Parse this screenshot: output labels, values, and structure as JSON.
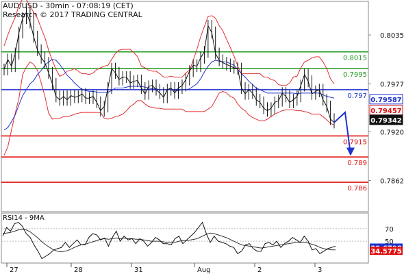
{
  "header": {
    "title": "AUD/USD - 30min - 07:08:19 (CET)",
    "subtitle": "Research © 2017 TRADING CENTRAL"
  },
  "rsi_label": "RSI14 - 9MA",
  "colors": {
    "price": "#111111",
    "bands": "#e03030",
    "ma": "#2233cc",
    "resistance": "#229922",
    "pivot": "#1f33cc",
    "support": "#e01010",
    "projection": "#1f33cc",
    "rsi": "#111111",
    "rsi_ma": "#333333",
    "tag_rsi": "#1f33cc",
    "tag_rsi_ma": "#e01010",
    "tag_dark": "#111111"
  },
  "chart_data": [
    {
      "type": "line",
      "title": "AUD/USD - 30min - 07:08:19 (CET)",
      "ylim": [
        0.7825,
        0.8075
      ],
      "x_tick_labels": [
        "27",
        "28",
        "31",
        "Aug",
        "2",
        "3"
      ],
      "y_tick_labels": [
        {
          "value": 0.8035,
          "label": "0.8035"
        },
        {
          "value": 0.7977,
          "label": "0.7977"
        },
        {
          "value": 0.792,
          "label": "0.7920"
        },
        {
          "value": 0.7862,
          "label": "0.7862"
        }
      ],
      "levels": [
        {
          "value": 0.8015,
          "label": "0.8015",
          "kind": "resistance"
        },
        {
          "value": 0.7995,
          "label": "0.7995",
          "kind": "resistance"
        },
        {
          "value": 0.797,
          "label": "0.797",
          "kind": "pivot"
        },
        {
          "value": 0.7915,
          "label": "0.7915",
          "kind": "support"
        },
        {
          "value": 0.789,
          "label": "0.789",
          "kind": "support"
        },
        {
          "value": 0.786,
          "label": "0.786",
          "kind": "support"
        }
      ],
      "value_tags": [
        {
          "value": 0.79587,
          "label": "0.79587",
          "kind": "outline_blue"
        },
        {
          "value": 0.79457,
          "label": "0.79457",
          "kind": "outline_red"
        },
        {
          "value": 0.79342,
          "label": "0.79342",
          "kind": "filled_dark"
        }
      ],
      "series": [
        {
          "role": "price",
          "values": [
            0.7994,
            0.8006,
            0.7998,
            0.8013,
            0.8038,
            0.8055,
            0.8062,
            0.805,
            0.8033,
            0.8017,
            0.8008,
            0.8002,
            0.799,
            0.7977,
            0.7962,
            0.7958,
            0.7962,
            0.7958,
            0.7963,
            0.7961,
            0.7962,
            0.7965,
            0.796,
            0.796,
            0.7962,
            0.7955,
            0.7945,
            0.795,
            0.7972,
            0.7995,
            0.799,
            0.7982,
            0.7985,
            0.7985,
            0.7978,
            0.798,
            0.7981,
            0.7972,
            0.7965,
            0.7974,
            0.7975,
            0.797,
            0.7966,
            0.7961,
            0.797,
            0.7972,
            0.7966,
            0.7972,
            0.7975,
            0.7982,
            0.7992,
            0.7999,
            0.7998,
            0.8008,
            0.8015,
            0.8046,
            0.8038,
            0.8013,
            0.8005,
            0.8002,
            0.8,
            0.7998,
            0.7996,
            0.7995,
            0.7972,
            0.7965,
            0.797,
            0.7966,
            0.7958,
            0.7955,
            0.7948,
            0.7945,
            0.7948,
            0.7955,
            0.7957,
            0.7966,
            0.7962,
            0.7955,
            0.7958,
            0.7962,
            0.7975,
            0.7988,
            0.798,
            0.7965,
            0.7968,
            0.797,
            0.7958,
            0.795,
            0.7935,
            0.7931
          ]
        },
        {
          "role": "bollinger_upper",
          "values": [
            0.8022,
            0.8035,
            0.8046,
            0.8056,
            0.807,
            0.8078,
            0.8077,
            0.8069,
            0.8062,
            0.8055,
            0.8043,
            0.8032,
            0.8017,
            0.8005,
            0.7994,
            0.7986,
            0.7988,
            0.7992,
            0.7993,
            0.7995,
            0.7992,
            0.7989,
            0.7989,
            0.7988,
            0.799,
            0.7994,
            0.7996,
            0.7998,
            0.7999,
            0.8006,
            0.8013,
            0.8017,
            0.8018,
            0.8018,
            0.8018,
            0.8014,
            0.8009,
            0.7998,
            0.7996,
            0.7993,
            0.7992,
            0.7992,
            0.7989,
            0.7985,
            0.7985,
            0.7986,
            0.7985,
            0.7985,
            0.7985,
            0.799,
            0.7993,
            0.8005,
            0.8018,
            0.8033,
            0.8045,
            0.8057,
            0.8058,
            0.8055,
            0.8046,
            0.804,
            0.803,
            0.802,
            0.801,
            0.7998,
            0.7989,
            0.7989,
            0.7989,
            0.7989,
            0.7989,
            0.7989,
            0.7985,
            0.7985,
            0.7982,
            0.7981,
            0.7976,
            0.7975,
            0.7975,
            0.7978,
            0.7985,
            0.7986,
            0.7996,
            0.8003,
            0.8005,
            0.8008,
            0.8009,
            0.8009,
            0.8003,
            0.7995,
            0.7983,
            0.7977
          ]
        },
        {
          "role": "bollinger_lower",
          "values": [
            0.7892,
            0.7902,
            0.7922,
            0.7942,
            0.796,
            0.7988,
            0.7997,
            0.8003,
            0.8,
            0.7993,
            0.7978,
            0.7962,
            0.7942,
            0.7935,
            0.7936,
            0.7936,
            0.7938,
            0.7938,
            0.7939,
            0.7941,
            0.7942,
            0.7943,
            0.7943,
            0.7943,
            0.7943,
            0.7943,
            0.7943,
            0.7936,
            0.7935,
            0.7936,
            0.7938,
            0.7939,
            0.7941,
            0.7945,
            0.795,
            0.7953,
            0.7957,
            0.7957,
            0.7953,
            0.795,
            0.7949,
            0.7948,
            0.7948,
            0.7947,
            0.7947,
            0.7947,
            0.7947,
            0.7947,
            0.7947,
            0.7944,
            0.7944,
            0.7944,
            0.7944,
            0.7944,
            0.7944,
            0.7947,
            0.795,
            0.7958,
            0.7966,
            0.7968,
            0.7966,
            0.7962,
            0.796,
            0.7953,
            0.7948,
            0.7945,
            0.794,
            0.7937,
            0.7935,
            0.7933,
            0.7933,
            0.7935,
            0.7938,
            0.7941,
            0.7943,
            0.7945,
            0.7946,
            0.7946,
            0.7946,
            0.7945,
            0.7945,
            0.7944,
            0.7943,
            0.7941,
            0.7941,
            0.7941,
            0.7938,
            0.7934,
            0.793,
            0.7928
          ]
        },
        {
          "role": "moving_average",
          "values": [
            0.7922,
            0.7925,
            0.7932,
            0.794,
            0.7952,
            0.7963,
            0.797,
            0.7977,
            0.7981,
            0.7988,
            0.7993,
            0.7999,
            0.8003,
            0.8006,
            0.8005,
            0.8,
            0.7994,
            0.7987,
            0.7983,
            0.7978,
            0.7974,
            0.797,
            0.7969,
            0.7968,
            0.7968,
            0.7967,
            0.7967,
            0.7967,
            0.7967,
            0.7969,
            0.7972,
            0.7972,
            0.7972,
            0.7973,
            0.7974,
            0.7974,
            0.7974,
            0.7974,
            0.7973,
            0.7972,
            0.7971,
            0.7971,
            0.797,
            0.797,
            0.797,
            0.797,
            0.7969,
            0.7969,
            0.797,
            0.797,
            0.7971,
            0.7974,
            0.7977,
            0.7983,
            0.7991,
            0.7998,
            0.8003,
            0.8005,
            0.8004,
            0.8003,
            0.8003,
            0.8001,
            0.7999,
            0.7994,
            0.7989,
            0.7985,
            0.798,
            0.7976,
            0.7972,
            0.797,
            0.7968,
            0.7966,
            0.7966,
            0.7966,
            0.7966,
            0.7966,
            0.7966,
            0.7966,
            0.7966,
            0.7965,
            0.7966,
            0.7966,
            0.7966,
            0.7966,
            0.7966,
            0.7966,
            0.7964,
            0.7962,
            0.7961,
            0.796
          ]
        },
        {
          "role": "projection",
          "values": [
            0.7931,
            0.7943,
            0.7893
          ]
        }
      ]
    },
    {
      "type": "line",
      "title": "RSI14 - 9MA",
      "ylim": [
        15,
        95
      ],
      "y_tick_labels": [
        {
          "value": 70,
          "label": "70"
        },
        {
          "value": 50,
          "label": "50"
        }
      ],
      "value_tags": [
        {
          "value": 39.6798,
          "label": "39.6798",
          "kind": "rsi"
        },
        {
          "value": 34.5775,
          "label": "34.5775",
          "kind": "rsi_ma"
        }
      ],
      "series": [
        {
          "role": "rsi",
          "values": [
            58,
            72,
            66,
            78,
            80,
            74,
            62,
            56,
            44,
            34,
            22,
            26,
            30,
            36,
            38,
            40,
            48,
            40,
            46,
            52,
            44,
            44,
            56,
            62,
            60,
            52,
            55,
            42,
            56,
            66,
            50,
            58,
            52,
            54,
            46,
            54,
            50,
            42,
            48,
            56,
            52,
            46,
            46,
            44,
            54,
            58,
            46,
            52,
            58,
            64,
            72,
            80,
            62,
            48,
            58,
            50,
            48,
            46,
            42,
            40,
            30,
            34,
            44,
            46,
            38,
            34,
            34,
            46,
            48,
            44,
            50,
            40,
            46,
            50,
            56,
            52,
            48,
            58,
            50,
            36,
            38,
            30,
            34,
            38,
            40,
            42
          ]
        },
        {
          "role": "rsi_ma",
          "values": [
            62,
            63,
            64,
            66,
            68,
            69,
            68,
            65,
            60,
            55,
            49,
            44,
            40,
            36,
            34,
            33,
            34,
            36,
            39,
            42,
            44,
            45,
            47,
            49,
            51,
            53,
            54,
            53,
            54,
            55,
            54,
            55,
            54,
            54,
            53,
            53,
            52,
            51,
            50,
            50,
            50,
            49,
            48,
            48,
            48,
            50,
            51,
            51,
            52,
            53,
            55,
            58,
            61,
            63,
            62,
            60,
            58,
            56,
            53,
            50,
            47,
            44,
            43,
            42,
            41,
            40,
            39,
            40,
            41,
            42,
            43,
            44,
            45,
            46,
            47,
            48,
            48,
            48,
            47,
            45,
            43,
            40,
            38,
            37,
            36,
            36
          ]
        }
      ]
    }
  ]
}
